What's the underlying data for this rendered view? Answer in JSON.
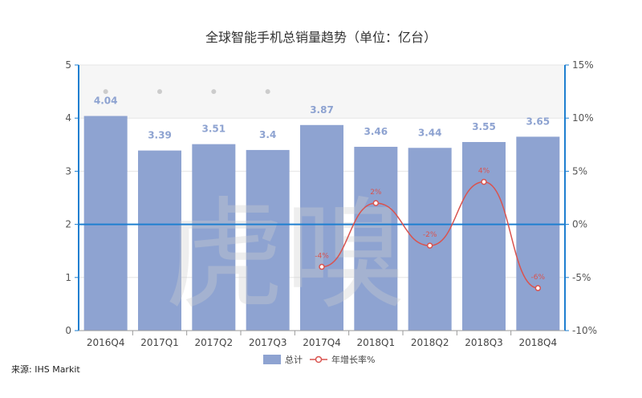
{
  "chart_data": {
    "type": "bar",
    "title": "全球智能手机总销量趋势（单位：亿台）",
    "categories": [
      "2016Q4",
      "2017Q1",
      "2017Q2",
      "2017Q3",
      "2017Q4",
      "2018Q1",
      "2018Q2",
      "2018Q3",
      "2018Q4"
    ],
    "series": [
      {
        "name": "总计",
        "type": "bar",
        "axis": "left",
        "values": [
          4.04,
          3.39,
          3.51,
          3.4,
          3.87,
          3.46,
          3.44,
          3.55,
          3.65
        ],
        "labels": [
          "4.04",
          "3.39",
          "3.51",
          "3.4",
          "3.87",
          "3.46",
          "3.44",
          "3.55",
          "3.65"
        ],
        "color": "#8ea3d1"
      },
      {
        "name": "年增长率%",
        "type": "line",
        "axis": "right",
        "values": [
          null,
          null,
          null,
          null,
          -4,
          2,
          -2,
          4,
          -6
        ],
        "labels": [
          "",
          "",
          "",
          "",
          "-4%",
          "2%",
          "-2%",
          "4%",
          "-6%"
        ],
        "color": "#d9534f"
      }
    ],
    "ylim_left": [
      0,
      5
    ],
    "yticks_left": [
      "0",
      "1",
      "2",
      "3",
      "4",
      "5"
    ],
    "ylim_right": [
      -10,
      15
    ],
    "yticks_right": [
      "-10%",
      "-5%",
      "0%",
      "5%",
      "10%",
      "15%"
    ],
    "legend_position": "bottom-center",
    "grid": true,
    "axis_color": "#1e7fd0"
  },
  "source": "来源: IHS Markit",
  "watermark": "虎嗅"
}
